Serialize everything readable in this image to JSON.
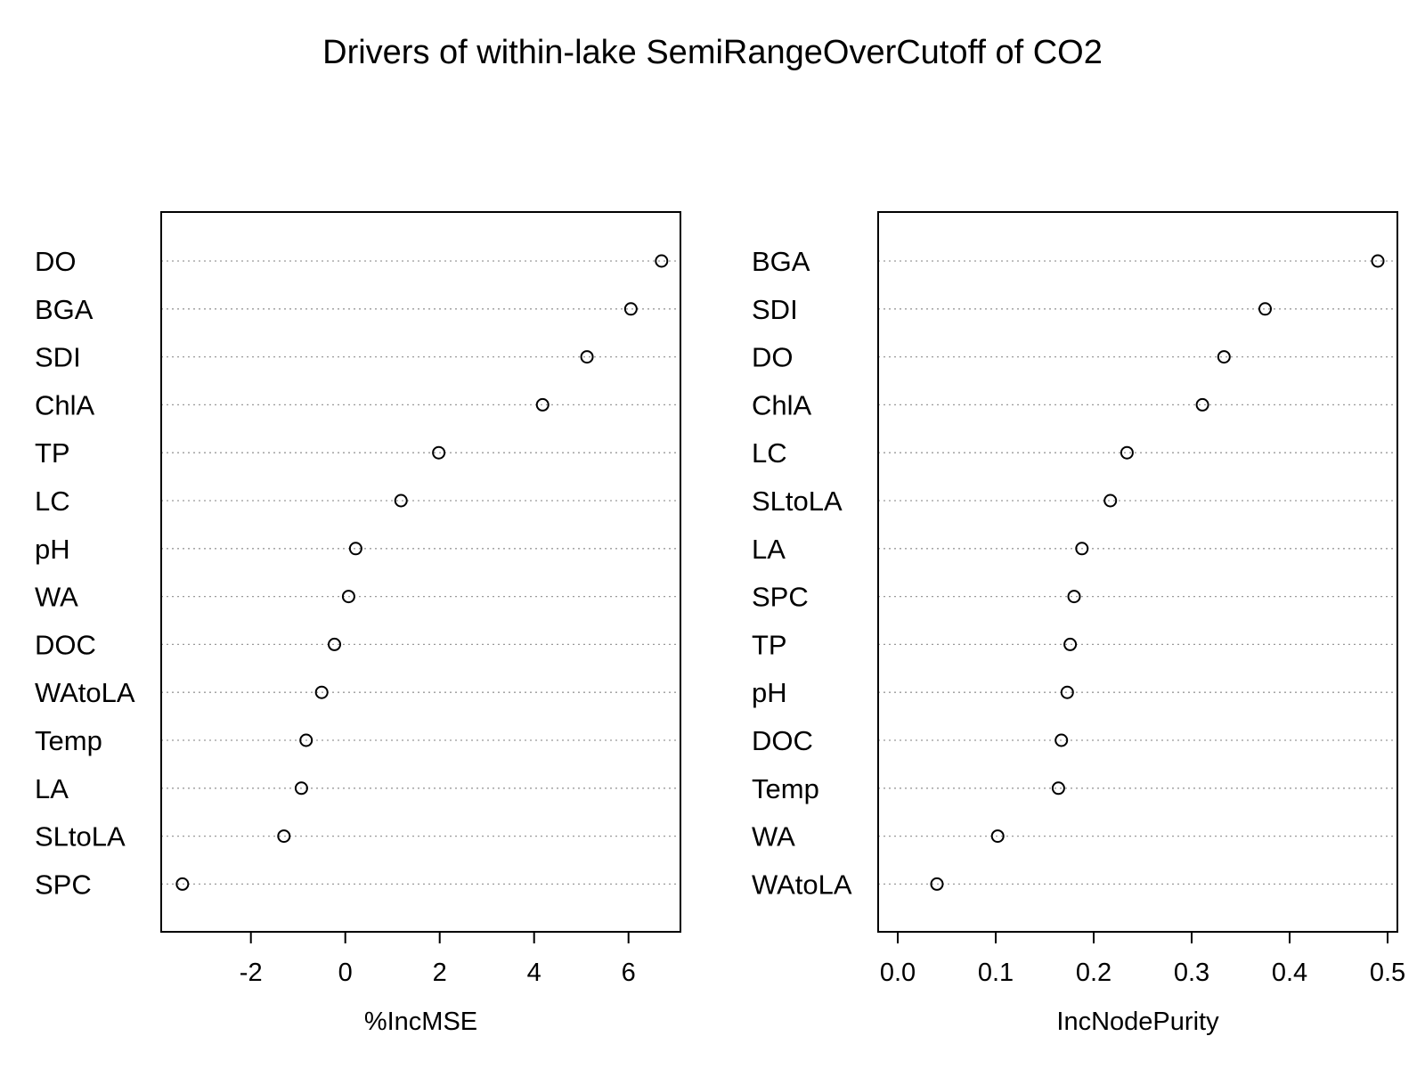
{
  "title": "Drivers of within-lake SemiRangeOverCutoff of CO2",
  "chart_data": [
    {
      "type": "scatter",
      "xlabel": "%IncMSE",
      "xlim": [
        -3.9,
        7.1
      ],
      "xticks": [
        -2,
        0,
        2,
        4,
        6
      ],
      "tick_labels": [
        "-2",
        "0",
        "2",
        "4",
        "6"
      ],
      "grid": "dotted horizontal lines per category",
      "categories": [
        "DO",
        "BGA",
        "SDI",
        "ChlA",
        "TP",
        "LC",
        "pH",
        "WA",
        "DOC",
        "WAtoLA",
        "Temp",
        "LA",
        "SLtoLA",
        "SPC"
      ],
      "values": [
        6.7,
        6.05,
        5.12,
        4.18,
        1.98,
        1.18,
        0.22,
        0.07,
        -0.23,
        -0.5,
        -0.83,
        -0.93,
        -1.3,
        -3.45
      ]
    },
    {
      "type": "scatter",
      "xlabel": "IncNodePurity",
      "xlim": [
        -0.02,
        0.51
      ],
      "xticks": [
        0.0,
        0.1,
        0.2,
        0.3,
        0.4,
        0.5
      ],
      "tick_labels": [
        "0.0",
        "0.1",
        "0.2",
        "0.3",
        "0.4",
        "0.5"
      ],
      "grid": "dotted horizontal lines per category",
      "categories": [
        "BGA",
        "SDI",
        "DO",
        "ChlA",
        "LC",
        "SLtoLA",
        "LA",
        "SPC",
        "TP",
        "pH",
        "DOC",
        "Temp",
        "WA",
        "WAtoLA"
      ],
      "values": [
        0.49,
        0.375,
        0.333,
        0.311,
        0.234,
        0.217,
        0.188,
        0.18,
        0.176,
        0.173,
        0.167,
        0.164,
        0.102,
        0.04
      ]
    }
  ]
}
